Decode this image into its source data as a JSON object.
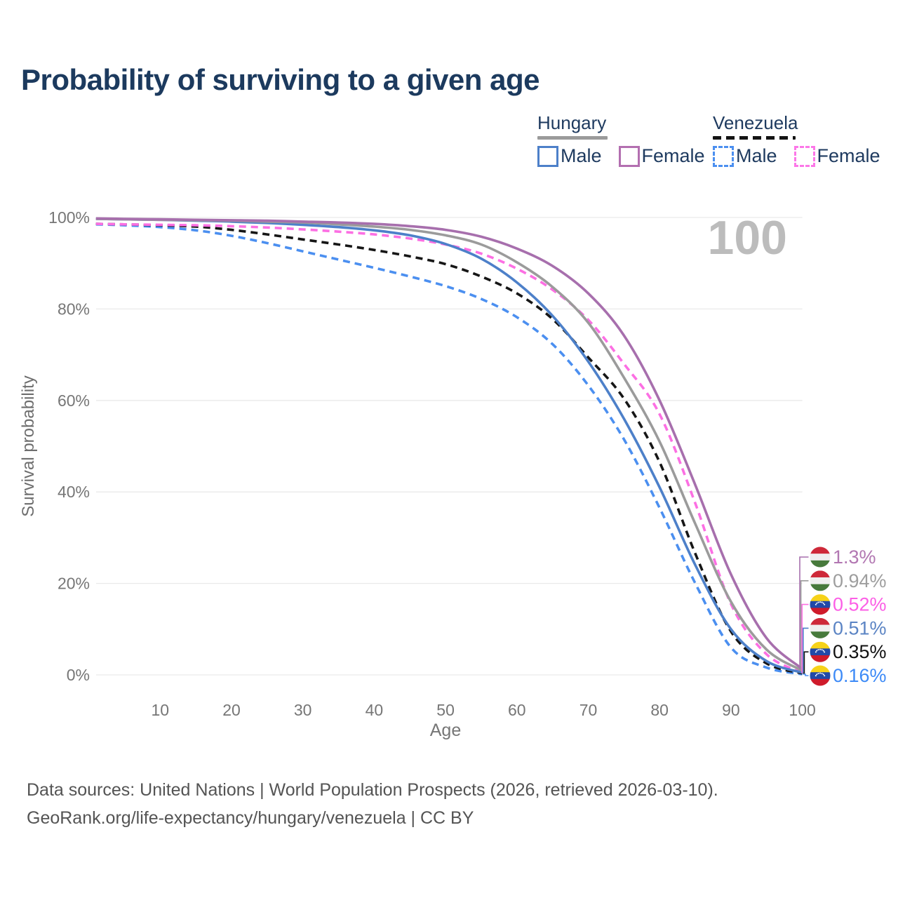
{
  "title": "Probability of surviving to a given age",
  "watermark_age": "100",
  "legend": {
    "groups": [
      {
        "name": "Hungary",
        "line_style": "solid",
        "underline_color": "#9b9b9b",
        "items": [
          {
            "label": "Male",
            "color": "#4d80c9",
            "dashed": false
          },
          {
            "label": "Female",
            "color": "#b36fb0",
            "dashed": false
          }
        ]
      },
      {
        "name": "Venezuela",
        "line_style": "dashed",
        "underline_color": "#141414",
        "items": [
          {
            "label": "Male",
            "color": "#4b8ff0",
            "dashed": true
          },
          {
            "label": "Female",
            "color": "#fc77e8",
            "dashed": true
          }
        ]
      }
    ]
  },
  "axes": {
    "x_label": "Age",
    "y_label": "Survival probability",
    "x_ticks": [
      10,
      20,
      30,
      40,
      50,
      60,
      70,
      80,
      90,
      100
    ],
    "y_ticks": [
      {
        "value": 0,
        "label": "0%"
      },
      {
        "value": 20,
        "label": "20%"
      },
      {
        "value": 40,
        "label": "40%"
      },
      {
        "value": 60,
        "label": "60%"
      },
      {
        "value": 80,
        "label": "80%"
      },
      {
        "value": 100,
        "label": "100%"
      }
    ]
  },
  "chart_data": {
    "type": "line",
    "title": "Probability of surviving to a given age",
    "xlabel": "Age",
    "ylabel": "Survival probability",
    "xlim": [
      1,
      100
    ],
    "ylim": [
      0,
      100
    ],
    "grid": "horizontal",
    "legend_position": "top-right",
    "ages": [
      1,
      5,
      10,
      15,
      20,
      25,
      30,
      35,
      40,
      45,
      50,
      55,
      60,
      65,
      70,
      75,
      80,
      85,
      90,
      95,
      100
    ],
    "series": [
      {
        "id": "hungary-female",
        "name": "Hungary Female",
        "country": "Hungary",
        "sex": "Female",
        "color": "#a76fad",
        "label_color": "#b277b2",
        "dashed": false,
        "end_label": "1.3%",
        "end_value": 1.3,
        "flag": "hungary",
        "values": [
          99.8,
          99.7,
          99.6,
          99.5,
          99.4,
          99.3,
          99.1,
          98.9,
          98.6,
          98.1,
          97.3,
          95.8,
          93.2,
          89.4,
          83.4,
          74.2,
          60.0,
          41.5,
          22.0,
          8.0,
          1.3
        ]
      },
      {
        "id": "hungary-mean",
        "name": "Hungary (both sexes)",
        "country": "Hungary",
        "sex": "All",
        "color": "#9b9b9b",
        "label_color": "#9e9e9e",
        "dashed": false,
        "end_label": "0.94%",
        "end_value": 0.94,
        "flag": "hungary",
        "values": [
          99.7,
          99.6,
          99.5,
          99.4,
          99.3,
          99.1,
          98.9,
          98.5,
          98.0,
          97.3,
          96.1,
          94.1,
          90.2,
          84.8,
          77.0,
          65.0,
          51.0,
          33.0,
          16.0,
          5.5,
          0.94
        ]
      },
      {
        "id": "venezuela-female",
        "name": "Venezuela Female",
        "country": "Venezuela",
        "sex": "Female",
        "color": "#fc6fe3",
        "label_color": "#fc5fe6",
        "dashed": true,
        "end_label": "0.52%",
        "end_value": 0.52,
        "flag": "venezuela",
        "values": [
          98.6,
          98.5,
          98.4,
          98.3,
          98.1,
          97.8,
          97.4,
          96.9,
          96.3,
          95.4,
          94.1,
          92.1,
          88.8,
          84.2,
          77.6,
          68.0,
          57.0,
          37.5,
          15.5,
          4.5,
          0.52
        ]
      },
      {
        "id": "hungary-male",
        "name": "Hungary Male",
        "country": "Hungary",
        "sex": "Male",
        "color": "#4d80c9",
        "label_color": "#5b84c4",
        "dashed": false,
        "end_label": "0.51%",
        "end_value": 0.51,
        "flag": "hungary",
        "values": [
          99.7,
          99.6,
          99.5,
          99.3,
          99.1,
          98.8,
          98.4,
          97.9,
          97.2,
          96.1,
          94.2,
          91.0,
          85.8,
          78.5,
          68.5,
          56.0,
          41.0,
          24.0,
          10.0,
          3.0,
          0.51
        ]
      },
      {
        "id": "venezuela-mean",
        "name": "Venezuela (both sexes)",
        "country": "Venezuela",
        "sex": "All",
        "color": "#161616",
        "label_color": "#111111",
        "dashed": true,
        "end_label": "0.35%",
        "end_value": 0.35,
        "flag": "venezuela",
        "values": [
          98.6,
          98.5,
          98.3,
          98.0,
          97.3,
          96.3,
          95.2,
          94.1,
          92.9,
          91.5,
          89.8,
          87.1,
          83.4,
          77.8,
          69.4,
          60.4,
          46.5,
          26.5,
          9.5,
          2.5,
          0.35
        ]
      },
      {
        "id": "venezuela-male",
        "name": "Venezuela Male",
        "country": "Venezuela",
        "sex": "Male",
        "color": "#4b8ff0",
        "label_color": "#3d8af7",
        "dashed": true,
        "end_label": "0.16%",
        "end_value": 0.16,
        "flag": "venezuela",
        "values": [
          98.5,
          98.3,
          97.9,
          97.2,
          96.0,
          94.4,
          92.6,
          90.8,
          89.0,
          87.1,
          85.0,
          82.2,
          78.2,
          72.3,
          63.3,
          51.5,
          36.5,
          20.0,
          6.0,
          1.6,
          0.16
        ]
      }
    ],
    "flags": {
      "hungary": {
        "stripes": [
          "#ce2939",
          "#efefef",
          "#477a3c"
        ]
      },
      "venezuela": {
        "stripes": [
          "#f6d219",
          "#2149a8",
          "#cf1b2b"
        ],
        "stars": "#ffffff"
      }
    }
  },
  "footer": {
    "line1": "Data sources: United Nations | World Population Prospects (2026, retrieved 2026-03-10).",
    "line2": "GeoRank.org/life-expectancy/hungary/venezuela | CC BY"
  }
}
